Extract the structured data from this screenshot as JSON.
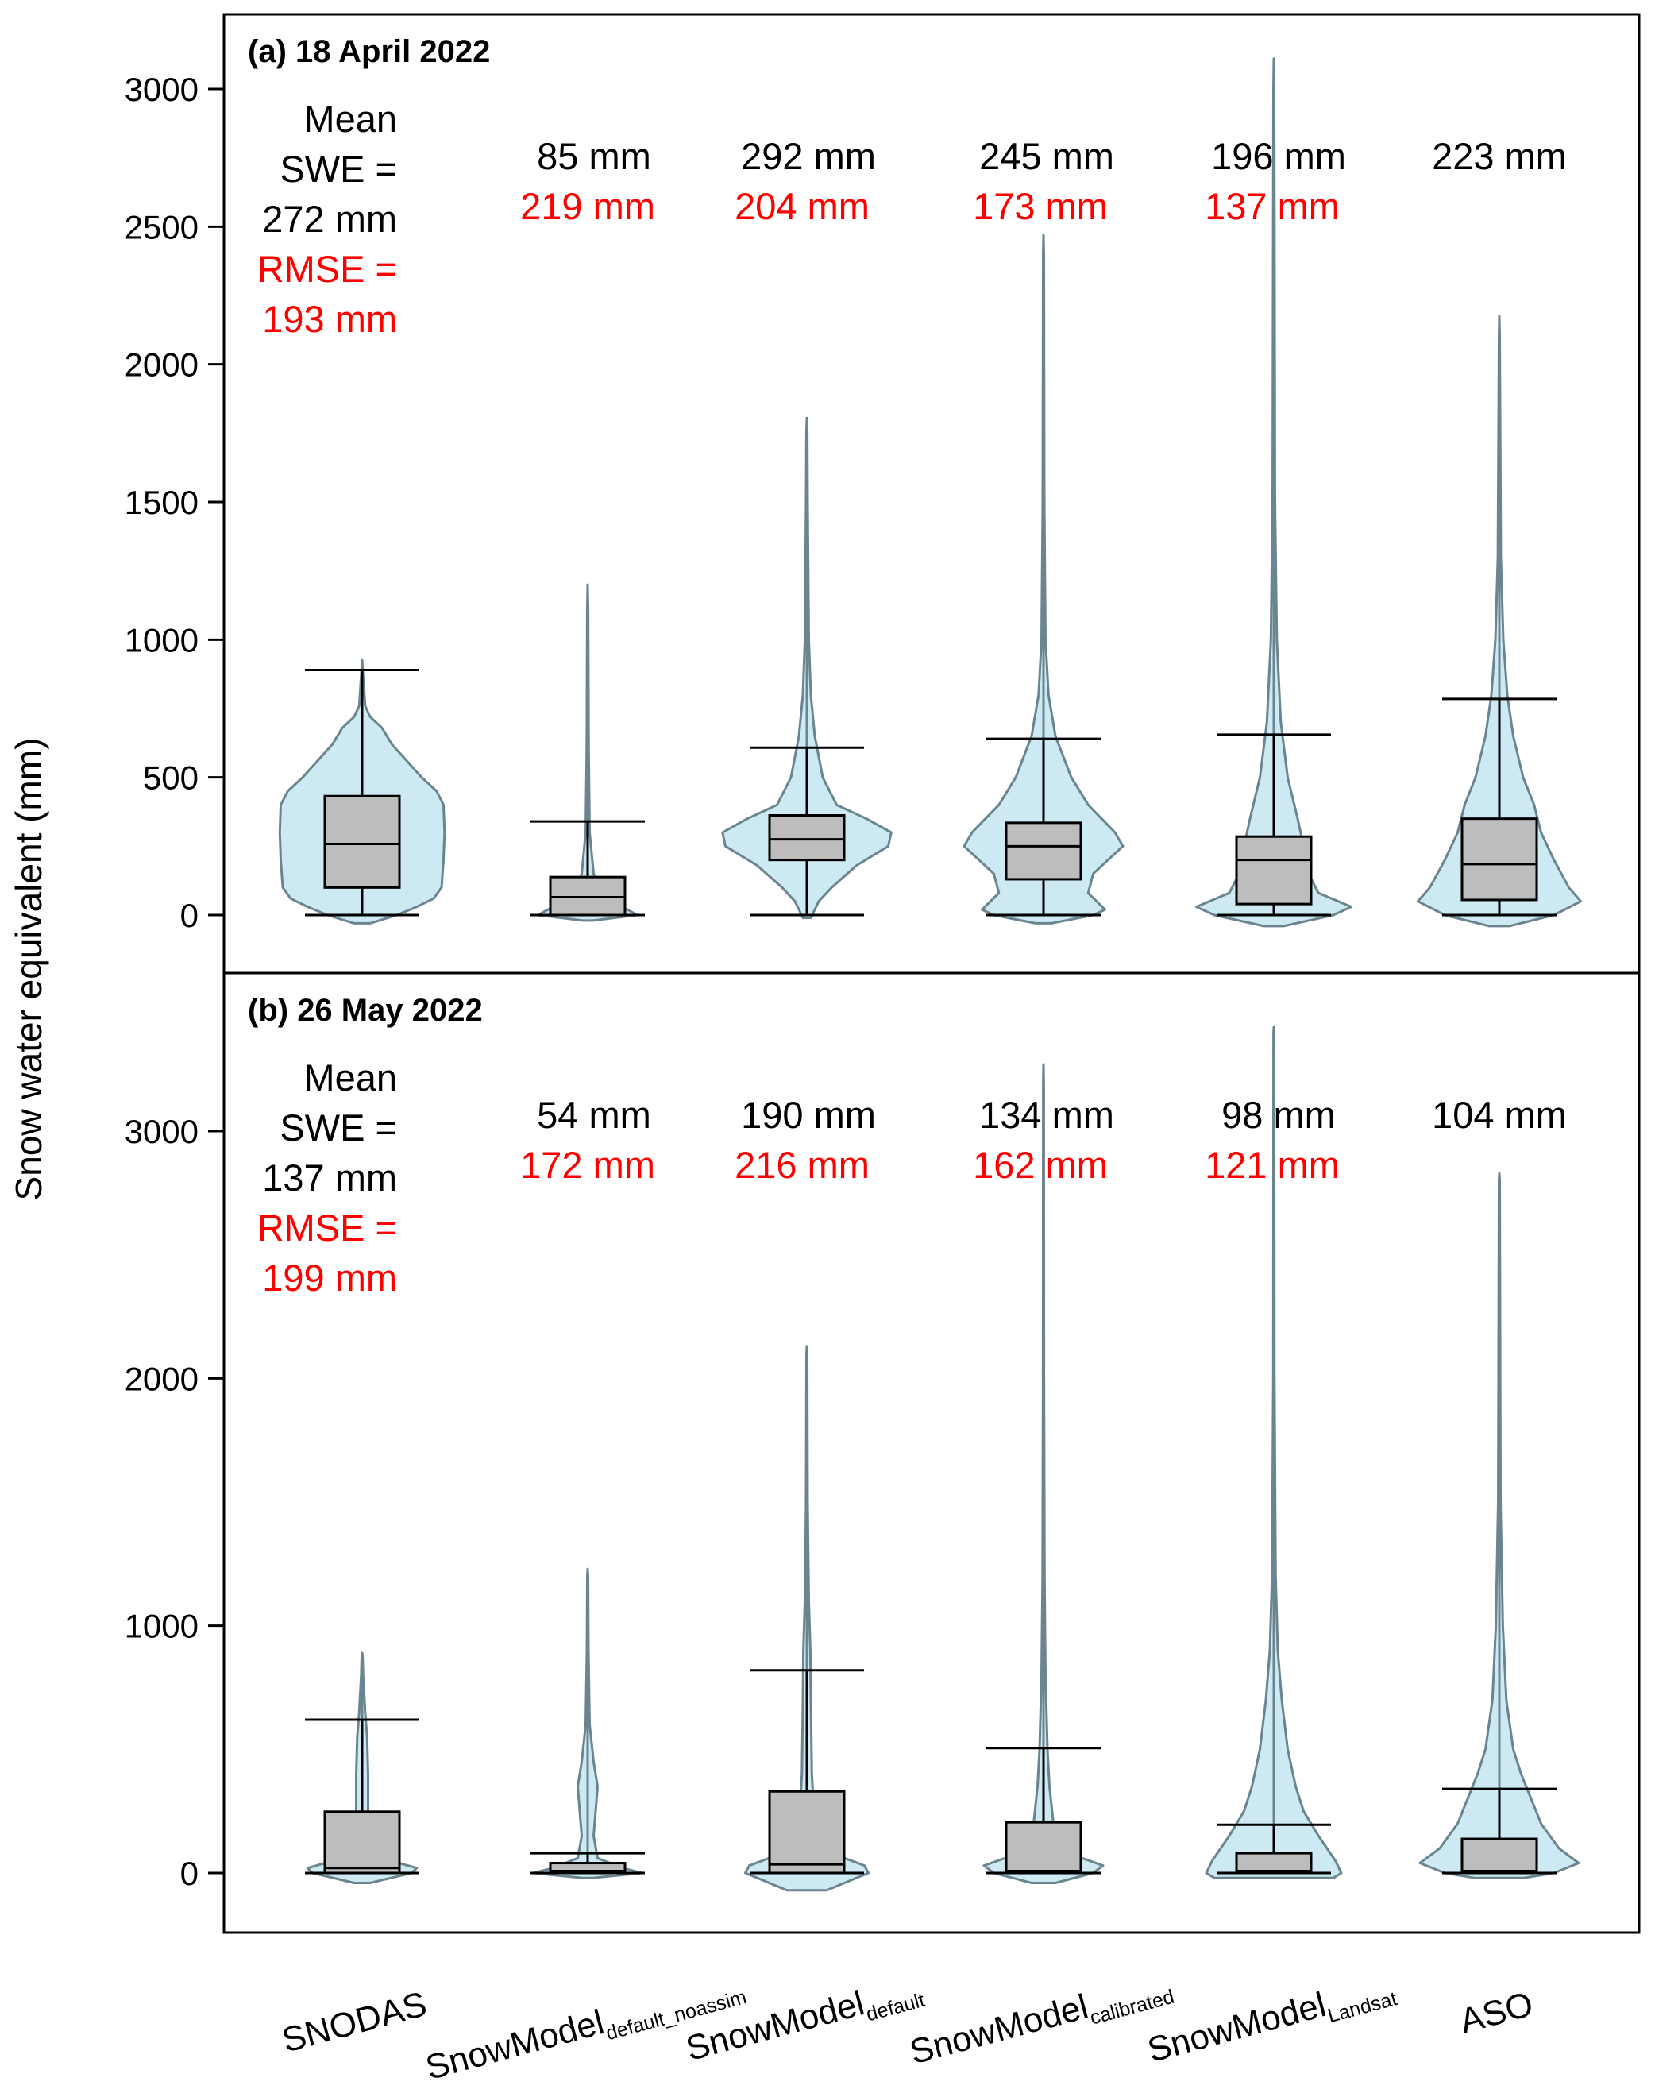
{
  "chart_data": {
    "type": "violin-box",
    "ylabel": "Snow water equivalent (mm)",
    "categories": [
      {
        "main": "SNODAS",
        "sub": ""
      },
      {
        "main": "SnowModel",
        "sub": "default_noassim"
      },
      {
        "main": "SnowModel",
        "sub": "default"
      },
      {
        "main": "SnowModel",
        "sub": "calibrated"
      },
      {
        "main": "SnowModel",
        "sub": "Landsat"
      },
      {
        "main": "ASO",
        "sub": ""
      }
    ],
    "panels": [
      {
        "title": "(a) 18 April 2022",
        "ylim": [
          -190,
          3290
        ],
        "yticks": [
          0,
          500,
          1000,
          1500,
          2000,
          2500,
          3000
        ],
        "label_lines": [
          "Mean",
          "SWE =",
          "272 mm"
        ],
        "rmse_lines": [
          "RMSE =",
          "193 mm"
        ],
        "mean_swe": [
          "",
          "85 mm",
          "292 mm",
          "245 mm",
          "196 mm",
          "223 mm"
        ],
        "rmse": [
          "",
          "219 mm",
          "204 mm",
          "173 mm",
          "137 mm",
          ""
        ],
        "boxes": [
          {
            "q1": 100,
            "median": 258,
            "q3": 432,
            "whisker_low": 0,
            "whisker_high": 890,
            "max": 925
          },
          {
            "q1": 0,
            "median": 65,
            "q3": 138,
            "whisker_low": 0,
            "whisker_high": 340,
            "max": 1200
          },
          {
            "q1": 200,
            "median": 275,
            "q3": 362,
            "whisker_low": 0,
            "whisker_high": 608,
            "max": 1805
          },
          {
            "q1": 130,
            "median": 250,
            "q3": 335,
            "whisker_low": 0,
            "whisker_high": 640,
            "max": 2470
          },
          {
            "q1": 40,
            "median": 200,
            "q3": 285,
            "whisker_low": 0,
            "whisker_high": 655,
            "max": 3110
          },
          {
            "q1": 55,
            "median": 185,
            "q3": 350,
            "whisker_low": 0,
            "whisker_high": 785,
            "max": 2175
          }
        ]
      },
      {
        "title": "(b) 26 May 2022",
        "ylim": [
          -230,
          3550
        ],
        "yticks": [
          0,
          1000,
          2000,
          3000
        ],
        "label_lines": [
          "Mean",
          "SWE =",
          "137 mm"
        ],
        "rmse_lines": [
          "RMSE =",
          "199 mm"
        ],
        "mean_swe": [
          "",
          "54 mm",
          "190 mm",
          "134 mm",
          "98 mm",
          "104 mm"
        ],
        "rmse": [
          "",
          "172 mm",
          "216 mm",
          "162 mm",
          "121 mm",
          ""
        ],
        "boxes": [
          {
            "q1": 0,
            "median": 20,
            "q3": 248,
            "whisker_low": 0,
            "whisker_high": 620,
            "max": 890
          },
          {
            "q1": 0,
            "median": 8,
            "q3": 40,
            "whisker_low": 0,
            "whisker_high": 80,
            "max": 1230
          },
          {
            "q1": 0,
            "median": 35,
            "q3": 330,
            "whisker_low": 0,
            "whisker_high": 820,
            "max": 2130
          },
          {
            "q1": 0,
            "median": 8,
            "q3": 205,
            "whisker_low": 0,
            "whisker_high": 505,
            "max": 3270
          },
          {
            "q1": 0,
            "median": 8,
            "q3": 80,
            "whisker_low": 0,
            "whisker_high": 195,
            "max": 3420
          },
          {
            "q1": 0,
            "median": 8,
            "q3": 138,
            "whisker_low": 0,
            "whisker_high": 340,
            "max": 2830
          }
        ]
      }
    ],
    "violins": [
      [
        [
          [
            -30,
            0.08
          ],
          [
            0,
            0.35
          ],
          [
            30,
            0.55
          ],
          [
            60,
            0.72
          ],
          [
            100,
            0.8
          ],
          [
            200,
            0.82
          ],
          [
            300,
            0.83
          ],
          [
            400,
            0.82
          ],
          [
            450,
            0.75
          ],
          [
            500,
            0.6
          ],
          [
            560,
            0.45
          ],
          [
            620,
            0.3
          ],
          [
            680,
            0.2
          ],
          [
            720,
            0.08
          ],
          [
            760,
            0.03
          ]
        ],
        [
          [
            -20,
            0.05
          ],
          [
            0,
            0.5
          ],
          [
            20,
            0.4
          ],
          [
            50,
            0.22
          ],
          [
            80,
            0.14
          ],
          [
            150,
            0.06
          ],
          [
            300,
            0.02
          ],
          [
            600,
            0.01
          ],
          [
            1100,
            0.005
          ]
        ],
        [
          [
            -10,
            0.04
          ],
          [
            50,
            0.12
          ],
          [
            100,
            0.25
          ],
          [
            180,
            0.5
          ],
          [
            250,
            0.82
          ],
          [
            300,
            0.85
          ],
          [
            350,
            0.6
          ],
          [
            400,
            0.3
          ],
          [
            500,
            0.16
          ],
          [
            650,
            0.08
          ],
          [
            800,
            0.04
          ],
          [
            1000,
            0.02
          ],
          [
            1500,
            0.008
          ],
          [
            1750,
            0.005
          ]
        ],
        [
          [
            -30,
            0.08
          ],
          [
            0,
            0.5
          ],
          [
            20,
            0.62
          ],
          [
            80,
            0.45
          ],
          [
            150,
            0.5
          ],
          [
            250,
            0.8
          ],
          [
            300,
            0.72
          ],
          [
            400,
            0.45
          ],
          [
            500,
            0.28
          ],
          [
            650,
            0.12
          ],
          [
            800,
            0.05
          ],
          [
            1000,
            0.02
          ],
          [
            1500,
            0.008
          ],
          [
            2400,
            0.004
          ]
        ],
        [
          [
            -40,
            0.1
          ],
          [
            0,
            0.6
          ],
          [
            30,
            0.78
          ],
          [
            80,
            0.45
          ],
          [
            150,
            0.35
          ],
          [
            250,
            0.3
          ],
          [
            350,
            0.24
          ],
          [
            500,
            0.14
          ],
          [
            700,
            0.07
          ],
          [
            1000,
            0.03
          ],
          [
            1500,
            0.012
          ],
          [
            3000,
            0.004
          ]
        ],
        [
          [
            -40,
            0.1
          ],
          [
            0,
            0.55
          ],
          [
            50,
            0.82
          ],
          [
            100,
            0.7
          ],
          [
            200,
            0.55
          ],
          [
            300,
            0.42
          ],
          [
            400,
            0.35
          ],
          [
            500,
            0.24
          ],
          [
            650,
            0.14
          ],
          [
            800,
            0.08
          ],
          [
            1000,
            0.04
          ],
          [
            1300,
            0.015
          ],
          [
            2100,
            0.004
          ]
        ]
      ],
      [
        [
          [
            -40,
            0.08
          ],
          [
            0,
            0.5
          ],
          [
            20,
            0.55
          ],
          [
            60,
            0.2
          ],
          [
            150,
            0.08
          ],
          [
            250,
            0.06
          ],
          [
            400,
            0.06
          ],
          [
            550,
            0.05
          ],
          [
            650,
            0.03
          ],
          [
            800,
            0.01
          ],
          [
            880,
            0.004
          ]
        ],
        [
          [
            -20,
            0.05
          ],
          [
            0,
            0.55
          ],
          [
            20,
            0.35
          ],
          [
            60,
            0.1
          ],
          [
            150,
            0.06
          ],
          [
            250,
            0.08
          ],
          [
            350,
            0.1
          ],
          [
            450,
            0.06
          ],
          [
            600,
            0.02
          ],
          [
            900,
            0.008
          ],
          [
            1200,
            0.004
          ]
        ],
        [
          [
            -70,
            0.2
          ],
          [
            0,
            0.62
          ],
          [
            30,
            0.58
          ],
          [
            80,
            0.25
          ],
          [
            200,
            0.08
          ],
          [
            400,
            0.05
          ],
          [
            700,
            0.04
          ],
          [
            900,
            0.035
          ],
          [
            1100,
            0.02
          ],
          [
            1500,
            0.008
          ],
          [
            2100,
            0.004
          ]
        ],
        [
          [
            -40,
            0.12
          ],
          [
            0,
            0.5
          ],
          [
            30,
            0.6
          ],
          [
            80,
            0.25
          ],
          [
            200,
            0.1
          ],
          [
            350,
            0.06
          ],
          [
            500,
            0.04
          ],
          [
            800,
            0.02
          ],
          [
            1200,
            0.01
          ],
          [
            2000,
            0.005
          ],
          [
            3200,
            0.003
          ]
        ],
        [
          [
            -20,
            0.6
          ],
          [
            0,
            0.68
          ],
          [
            50,
            0.62
          ],
          [
            150,
            0.45
          ],
          [
            250,
            0.3
          ],
          [
            350,
            0.22
          ],
          [
            500,
            0.14
          ],
          [
            700,
            0.08
          ],
          [
            900,
            0.04
          ],
          [
            1200,
            0.018
          ],
          [
            2000,
            0.006
          ],
          [
            3400,
            0.003
          ]
        ],
        [
          [
            -20,
            0.25
          ],
          [
            0,
            0.55
          ],
          [
            40,
            0.8
          ],
          [
            100,
            0.6
          ],
          [
            200,
            0.42
          ],
          [
            300,
            0.32
          ],
          [
            400,
            0.22
          ],
          [
            500,
            0.14
          ],
          [
            700,
            0.07
          ],
          [
            1000,
            0.035
          ],
          [
            1500,
            0.012
          ],
          [
            2800,
            0.004
          ]
        ]
      ]
    ]
  }
}
